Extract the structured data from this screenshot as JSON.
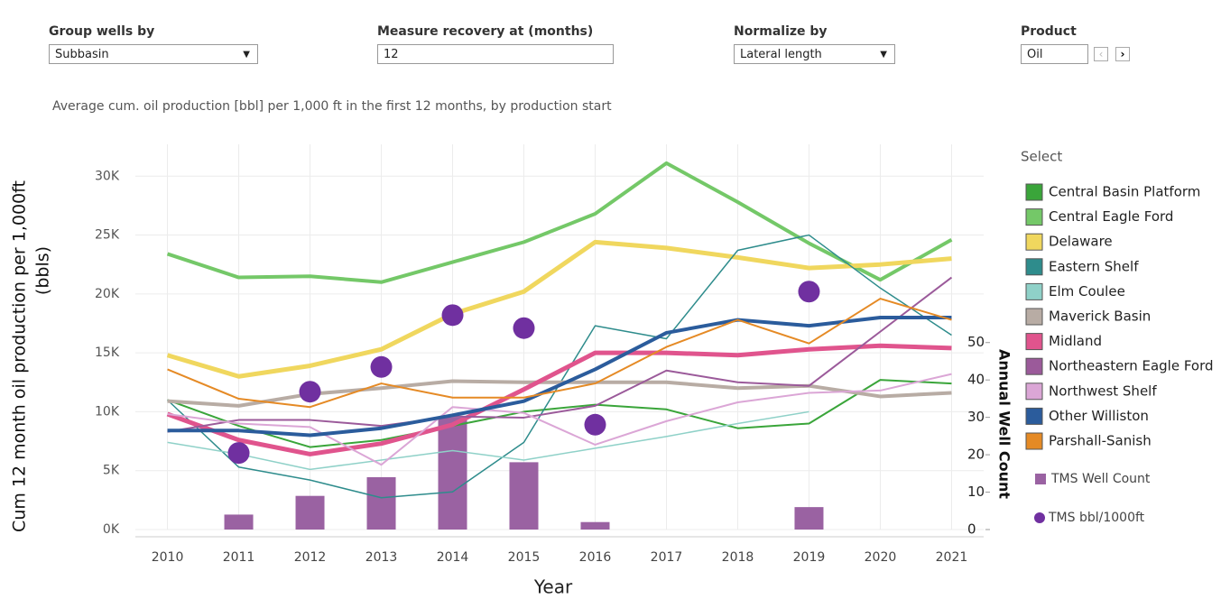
{
  "controls": [
    {
      "label": "Group wells by",
      "value": "Subbasin"
    },
    {
      "label": "Measure recovery at (months)",
      "value": "12"
    },
    {
      "label": "Normalize by",
      "value": "Lateral length"
    },
    {
      "label": "Product",
      "value": "Oil"
    }
  ],
  "chart_data": {
    "type": "line",
    "subtitle": "Average cum. oil production [bbl] per 1,000 ft in the first 12 months, by production start",
    "xlabel": "Year",
    "ylabel": [
      "Cum 12 month oil production per 1,000ft",
      "(bbls)"
    ],
    "y2label": "Annual Well Count",
    "legend_title": "Select",
    "grid": true,
    "x": [
      2010,
      2011,
      2012,
      2013,
      2014,
      2015,
      2016,
      2017,
      2018,
      2019,
      2020,
      2021
    ],
    "xlim": [
      2009.55,
      2021.45
    ],
    "xticks": [
      2010,
      2011,
      2012,
      2013,
      2014,
      2015,
      2016,
      2017,
      2018,
      2019,
      2020,
      2021
    ],
    "ylim": [
      0,
      32700
    ],
    "yticks": [
      {
        "value": 0,
        "label": "0K"
      },
      {
        "value": 5000,
        "label": "5K"
      },
      {
        "value": 10000,
        "label": "10K"
      },
      {
        "value": 15000,
        "label": "15K"
      },
      {
        "value": 20000,
        "label": "20K"
      },
      {
        "value": 25000,
        "label": "25K"
      },
      {
        "value": 30000,
        "label": "30K"
      }
    ],
    "y2lim": [
      0,
      103
    ],
    "y2ticks": [
      0,
      10,
      20,
      30,
      40,
      50
    ],
    "series": [
      {
        "name": "Central Basin Platform",
        "color": "#3aa53a",
        "values": [
          11000,
          8800,
          7000,
          7600,
          8800,
          10000,
          10600,
          10200,
          8600,
          9000,
          12700,
          12400
        ]
      },
      {
        "name": "Central Eagle Ford",
        "color": "#74c868",
        "values": [
          23400,
          21400,
          21500,
          21000,
          22700,
          24400,
          26800,
          31100,
          27800,
          24300,
          21200,
          24600
        ]
      },
      {
        "name": "Delaware",
        "color": "#f0d75e",
        "values": [
          14800,
          13000,
          13900,
          15300,
          18300,
          20200,
          24400,
          23900,
          23100,
          22200,
          22500,
          23000
        ]
      },
      {
        "name": "Eastern Shelf",
        "color": "#2e8c8c",
        "values": [
          11000,
          5300,
          4200,
          2700,
          3200,
          7400,
          17300,
          16200,
          23700,
          25000,
          20500,
          16500
        ]
      },
      {
        "name": "Elm Coulee",
        "color": "#8fd1c8",
        "values": [
          7400,
          6400,
          5100,
          5900,
          6700,
          5900,
          6900,
          7900,
          9000,
          10000,
          null,
          null
        ]
      },
      {
        "name": "Maverick Basin",
        "color": "#b8aca4",
        "values": [
          10900,
          10500,
          11500,
          12000,
          12600,
          12500,
          12500,
          12500,
          12000,
          12200,
          11300,
          11600
        ]
      },
      {
        "name": "Midland",
        "color": "#e0548d",
        "values": [
          9800,
          7600,
          6400,
          7300,
          8900,
          11900,
          15000,
          15000,
          14800,
          15300,
          15600,
          15400
        ]
      },
      {
        "name": "Northeastern Eagle Ford",
        "color": "#9b5a9a",
        "values": [
          8300,
          9300,
          9300,
          8800,
          9600,
          9500,
          10500,
          13500,
          12500,
          12200,
          16800,
          21400
        ]
      },
      {
        "name": "Northwest Shelf",
        "color": "#dba6d6",
        "values": [
          9800,
          9000,
          8700,
          5500,
          10400,
          9900,
          7200,
          9200,
          10800,
          11600,
          11800,
          13200
        ]
      },
      {
        "name": "Other Williston",
        "color": "#2b5c9c",
        "values": [
          8400,
          8400,
          8000,
          8600,
          9700,
          10900,
          13600,
          16700,
          17800,
          17300,
          18000,
          18000
        ]
      },
      {
        "name": "Parshall-Sanish",
        "color": "#e58a25",
        "values": [
          13600,
          11100,
          10400,
          12400,
          11200,
          11200,
          12400,
          15500,
          17800,
          15800,
          19600,
          17800
        ]
      },
      {
        "name": "TMS Well Count",
        "color": "#9a62a2",
        "type": "bar",
        "axis": "y2",
        "values": [
          null,
          4,
          9,
          14,
          30,
          18,
          2,
          null,
          null,
          6,
          null,
          null
        ]
      },
      {
        "name": "TMS bbl/1000ft",
        "color": "#7030a0",
        "type": "scatter",
        "values": [
          null,
          6500,
          11700,
          13800,
          18200,
          17100,
          8900,
          null,
          null,
          20200,
          null,
          null
        ]
      }
    ]
  }
}
